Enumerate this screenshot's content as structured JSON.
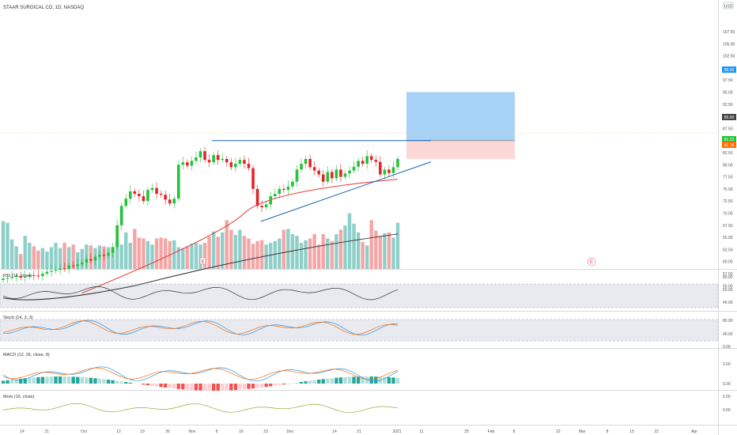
{
  "symbol_title": "STAAR SURGICAL CO, 1D, NASDAQ",
  "currency": "USD",
  "colors": {
    "up": "#26c23a",
    "down": "#e0262b",
    "vol_up": "#8fcfc9",
    "vol_down": "#f4a6a6",
    "hist_pos_strong": "#26a69a",
    "hist_pos_weak": "#b2dfdb",
    "hist_neg_strong": "#ef5350",
    "hist_neg_weak": "#ffcdd2",
    "ma_fast": "#e53935",
    "ma_slow": "#333333",
    "resistance": "#1e63b5",
    "trendline": "#1e63b5",
    "target_zone": "#a6d2f8",
    "stop_zone": "#fcd7d7",
    "rsi": "#333333",
    "stoch_k": "#2196f3",
    "stoch_d": "#ff6d00",
    "macd": "#2196f3",
    "signal": "#ff6d00",
    "mom": "#9aa832",
    "price_tag_target": "#2196f3",
    "price_tag_current": "#26c23a",
    "price_tag_alt": "#ff6d00"
  },
  "price_axis": {
    "ticks": [
      "107.50",
      "105.00",
      "102.50",
      "100.00",
      "97.50",
      "95.00",
      "92.50",
      "90.00",
      "87.50",
      "85.00",
      "82.50",
      "80.00",
      "77.50",
      "75.00",
      "72.50",
      "70.00",
      "67.50",
      "65.00",
      "62.50",
      "60.00",
      "57.50",
      "55.00"
    ],
    "labels": {
      "target": "95.00",
      "entry": "85.00",
      "current": "81.22",
      "alt": "81.19"
    }
  },
  "time_axis": [
    "14",
    "21",
    "Oct",
    "12",
    "19",
    "26",
    "Nov",
    "9",
    "16",
    "23",
    "Dec",
    "14",
    "21",
    "2021",
    "11",
    "25",
    "Feb",
    "8",
    "22",
    "Mar",
    "8",
    "15",
    "22",
    "Apr"
  ],
  "markers": {
    "earnings_1": "E",
    "earnings_2": "E",
    "earnings_future": "E"
  },
  "panes": {
    "rsi": {
      "title": "RSI (14, close)",
      "ticks": [
        "80.00",
        "60.00",
        "40.00"
      ]
    },
    "stoch": {
      "title": "Stoch (14, 3, 3)",
      "ticks": [
        "80.00",
        "40.00",
        "0.00"
      ]
    },
    "macd": {
      "title": "MACD (12, 26, close, 9)",
      "ticks": [
        "2.00",
        "0.00"
      ]
    },
    "mom": {
      "title": "Mom (10, close)",
      "ticks": [
        "5.00",
        "0.00"
      ]
    }
  },
  "chart_data": {
    "type": "line",
    "title": "STAAR SURGICAL CO, 1D, NASDAQ",
    "ylim": [
      53,
      108
    ],
    "candles_close": [
      56.5,
      56.6,
      56.8,
      57.0,
      56.7,
      56.9,
      57.2,
      57.1,
      57.0,
      57.5,
      57.9,
      58.1,
      58.3,
      58.6,
      58.5,
      59.2,
      59.1,
      59.4,
      59.8,
      60.5,
      60.2,
      61.0,
      61.4,
      61.2,
      61.8,
      63.0,
      67.5,
      71.5,
      73.0,
      74.5,
      74.0,
      73.5,
      72.5,
      74.8,
      75.2,
      74.0,
      73.8,
      72.8,
      72.0,
      73.0,
      80.0,
      80.5,
      79.8,
      80.8,
      81.5,
      82.8,
      81.0,
      80.5,
      82.0,
      81.0,
      81.2,
      80.5,
      79.5,
      80.2,
      81.0,
      80.2,
      79.3,
      75.0,
      71.5,
      71.2,
      71.8,
      73.5,
      74.0,
      75.0,
      74.8,
      75.5,
      76.5,
      79.0,
      80.2,
      81.2,
      79.5,
      78.8,
      78.0,
      76.5,
      78.5,
      77.2,
      79.0,
      77.5,
      78.2,
      78.8,
      79.6,
      80.8,
      80.2,
      81.8,
      81.0,
      80.6,
      78.0,
      79.0,
      78.3,
      79.5,
      81.2
    ],
    "volume": [
      0.55,
      0.53,
      0.34,
      0.26,
      0.17,
      0.38,
      0.3,
      0.26,
      0.21,
      0.24,
      0.2,
      0.25,
      0.3,
      0.24,
      0.3,
      0.25,
      0.28,
      0.19,
      0.23,
      0.28,
      0.27,
      0.24,
      0.27,
      0.26,
      0.25,
      0.25,
      0.32,
      0.28,
      0.42,
      0.3,
      0.46,
      0.36,
      0.35,
      0.32,
      0.28,
      0.35,
      0.36,
      0.35,
      0.32,
      0.33,
      0.25,
      0.24,
      0.26,
      0.29,
      0.3,
      0.28,
      0.3,
      0.37,
      0.43,
      0.37,
      0.42,
      0.56,
      0.45,
      0.39,
      0.45,
      0.38,
      0.35,
      0.29,
      0.32,
      0.33,
      0.28,
      0.3,
      0.32,
      0.35,
      0.45,
      0.46,
      0.4,
      0.38,
      0.3,
      0.33,
      0.35,
      0.4,
      0.28,
      0.4,
      0.35,
      0.32,
      0.4,
      0.45,
      0.5,
      0.64,
      0.52,
      0.42,
      0.31,
      0.27,
      0.56,
      0.44,
      0.38,
      0.41,
      0.42,
      0.36,
      0.53
    ],
    "ma_fast_ends": [
      55.8,
      65.5,
      77.0
    ],
    "ma_slow_ends": [
      52.5,
      62.0,
      65.7
    ],
    "resistance_level": 85.0,
    "target_level": 95.0,
    "stop_level": 81.2,
    "current_price": 81.22
  }
}
